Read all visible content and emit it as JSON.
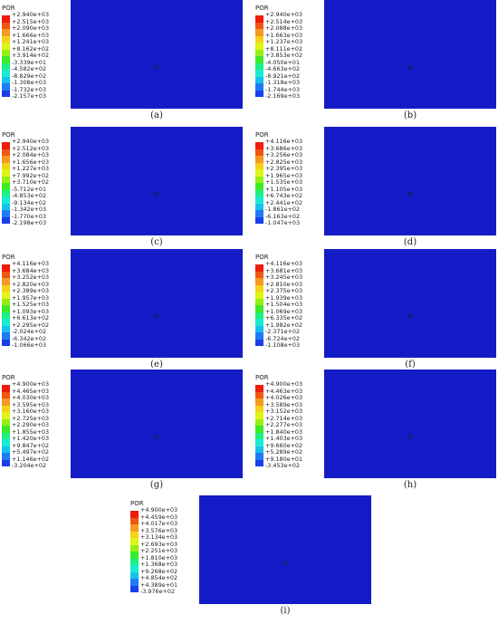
{
  "colors": [
    "#ef1b0b",
    "#ef5714",
    "#f59a21",
    "#f5d21a",
    "#dff417",
    "#95ee14",
    "#3cea28",
    "#1cf083",
    "#18ecd0",
    "#16c2ec",
    "#1e7bf3",
    "#1a3eea",
    "#141cc8"
  ],
  "panels": [
    {
      "title": "POR",
      "caption": "(a)",
      "values": [
        "+2.940e+03",
        "+2.515e+03",
        "+2.090e+03",
        "+1.666e+03",
        "+1.241e+03",
        "+8.162e+02",
        "+3.914e+02",
        "-3.339e+01",
        "-4.582e+02",
        "-8.829e+02",
        "-1.308e+03",
        "-1.732e+03",
        "-2.157e+03"
      ],
      "curvature": 0
    },
    {
      "title": "POR",
      "caption": "(b)",
      "values": [
        "+2.940e+03",
        "+2.514e+03",
        "+2.088e+03",
        "+1.663e+03",
        "+1.237e+03",
        "+8.111e+02",
        "+3.853e+02",
        "-4.050e+01",
        "-4.663e+02",
        "-8.921e+02",
        "-1.318e+03",
        "-1.744e+03",
        "-2.169e+03"
      ],
      "curvature": 0
    },
    {
      "title": "POR",
      "caption": "(c)",
      "values": [
        "+2.940e+03",
        "+2.512e+03",
        "+2.084e+03",
        "+1.656e+03",
        "+1.227e+03",
        "+7.992e+02",
        "+3.710e+02",
        "-5.712e+01",
        "-4.853e+02",
        "-9.134e+02",
        "-1.342e+03",
        "-1.770e+03",
        "-2.198e+03"
      ],
      "curvature": 0.3
    },
    {
      "title": "POR",
      "caption": "(d)",
      "values": [
        "+4.116e+03",
        "+3.686e+03",
        "+3.256e+03",
        "+2.825e+03",
        "+2.395e+03",
        "+1.965e+03",
        "+1.535e+03",
        "+1.105e+03",
        "+6.743e+02",
        "+2.441e+02",
        "-1.861e+02",
        "-6.163e+02",
        "-1.047e+03"
      ],
      "curvature": 0.6
    },
    {
      "title": "POR",
      "caption": "(e)",
      "values": [
        "+4.116e+03",
        "+3.684e+03",
        "+3.252e+03",
        "+2.820e+03",
        "+2.389e+03",
        "+1.957e+03",
        "+1.525e+03",
        "+1.093e+03",
        "+6.613e+02",
        "+2.295e+02",
        "-2.024e+02",
        "-6.342e+02",
        "-1.066e+03"
      ],
      "curvature": 0.6
    },
    {
      "title": "POR",
      "caption": "(f)",
      "values": [
        "+4.116e+03",
        "+3.681e+03",
        "+3.245e+03",
        "+2.810e+03",
        "+2.375e+03",
        "+1.939e+03",
        "+1.504e+03",
        "+1.069e+03",
        "+6.335e+02",
        "+1.982e+02",
        "-2.371e+02",
        "-6.724e+02",
        "-1.108e+03"
      ],
      "curvature": 0.6
    },
    {
      "title": "POR",
      "caption": "(g)",
      "values": [
        "+4.900e+03",
        "+4.465e+03",
        "+4.030e+03",
        "+3.595e+03",
        "+3.160e+03",
        "+2.725e+03",
        "+2.290e+03",
        "+1.855e+03",
        "+1.420e+03",
        "+9.847e+02",
        "+5.497e+02",
        "+1.146e+02",
        "-3.204e+02"
      ],
      "curvature": 1
    },
    {
      "title": "POR",
      "caption": "(h)",
      "values": [
        "+4.900e+03",
        "+4.463e+03",
        "+4.026e+03",
        "+3.589e+03",
        "+3.152e+03",
        "+2.714e+03",
        "+2.277e+03",
        "+1.840e+03",
        "+1.403e+03",
        "+9.660e+02",
        "+5.289e+02",
        "+9.180e+01",
        "-3.453e+02"
      ],
      "curvature": 1
    },
    {
      "title": "POR",
      "caption": "(i)",
      "values": [
        "+4.900e+03",
        "+4.459e+03",
        "+4.017e+03",
        "+3.576e+03",
        "+3.134e+03",
        "+2.693e+03",
        "+2.251e+03",
        "+1.810e+03",
        "+1.368e+03",
        "+9.268e+02",
        "+4.854e+02",
        "+4.389e+01",
        "-3.976e+02"
      ],
      "curvature": 1
    }
  ]
}
